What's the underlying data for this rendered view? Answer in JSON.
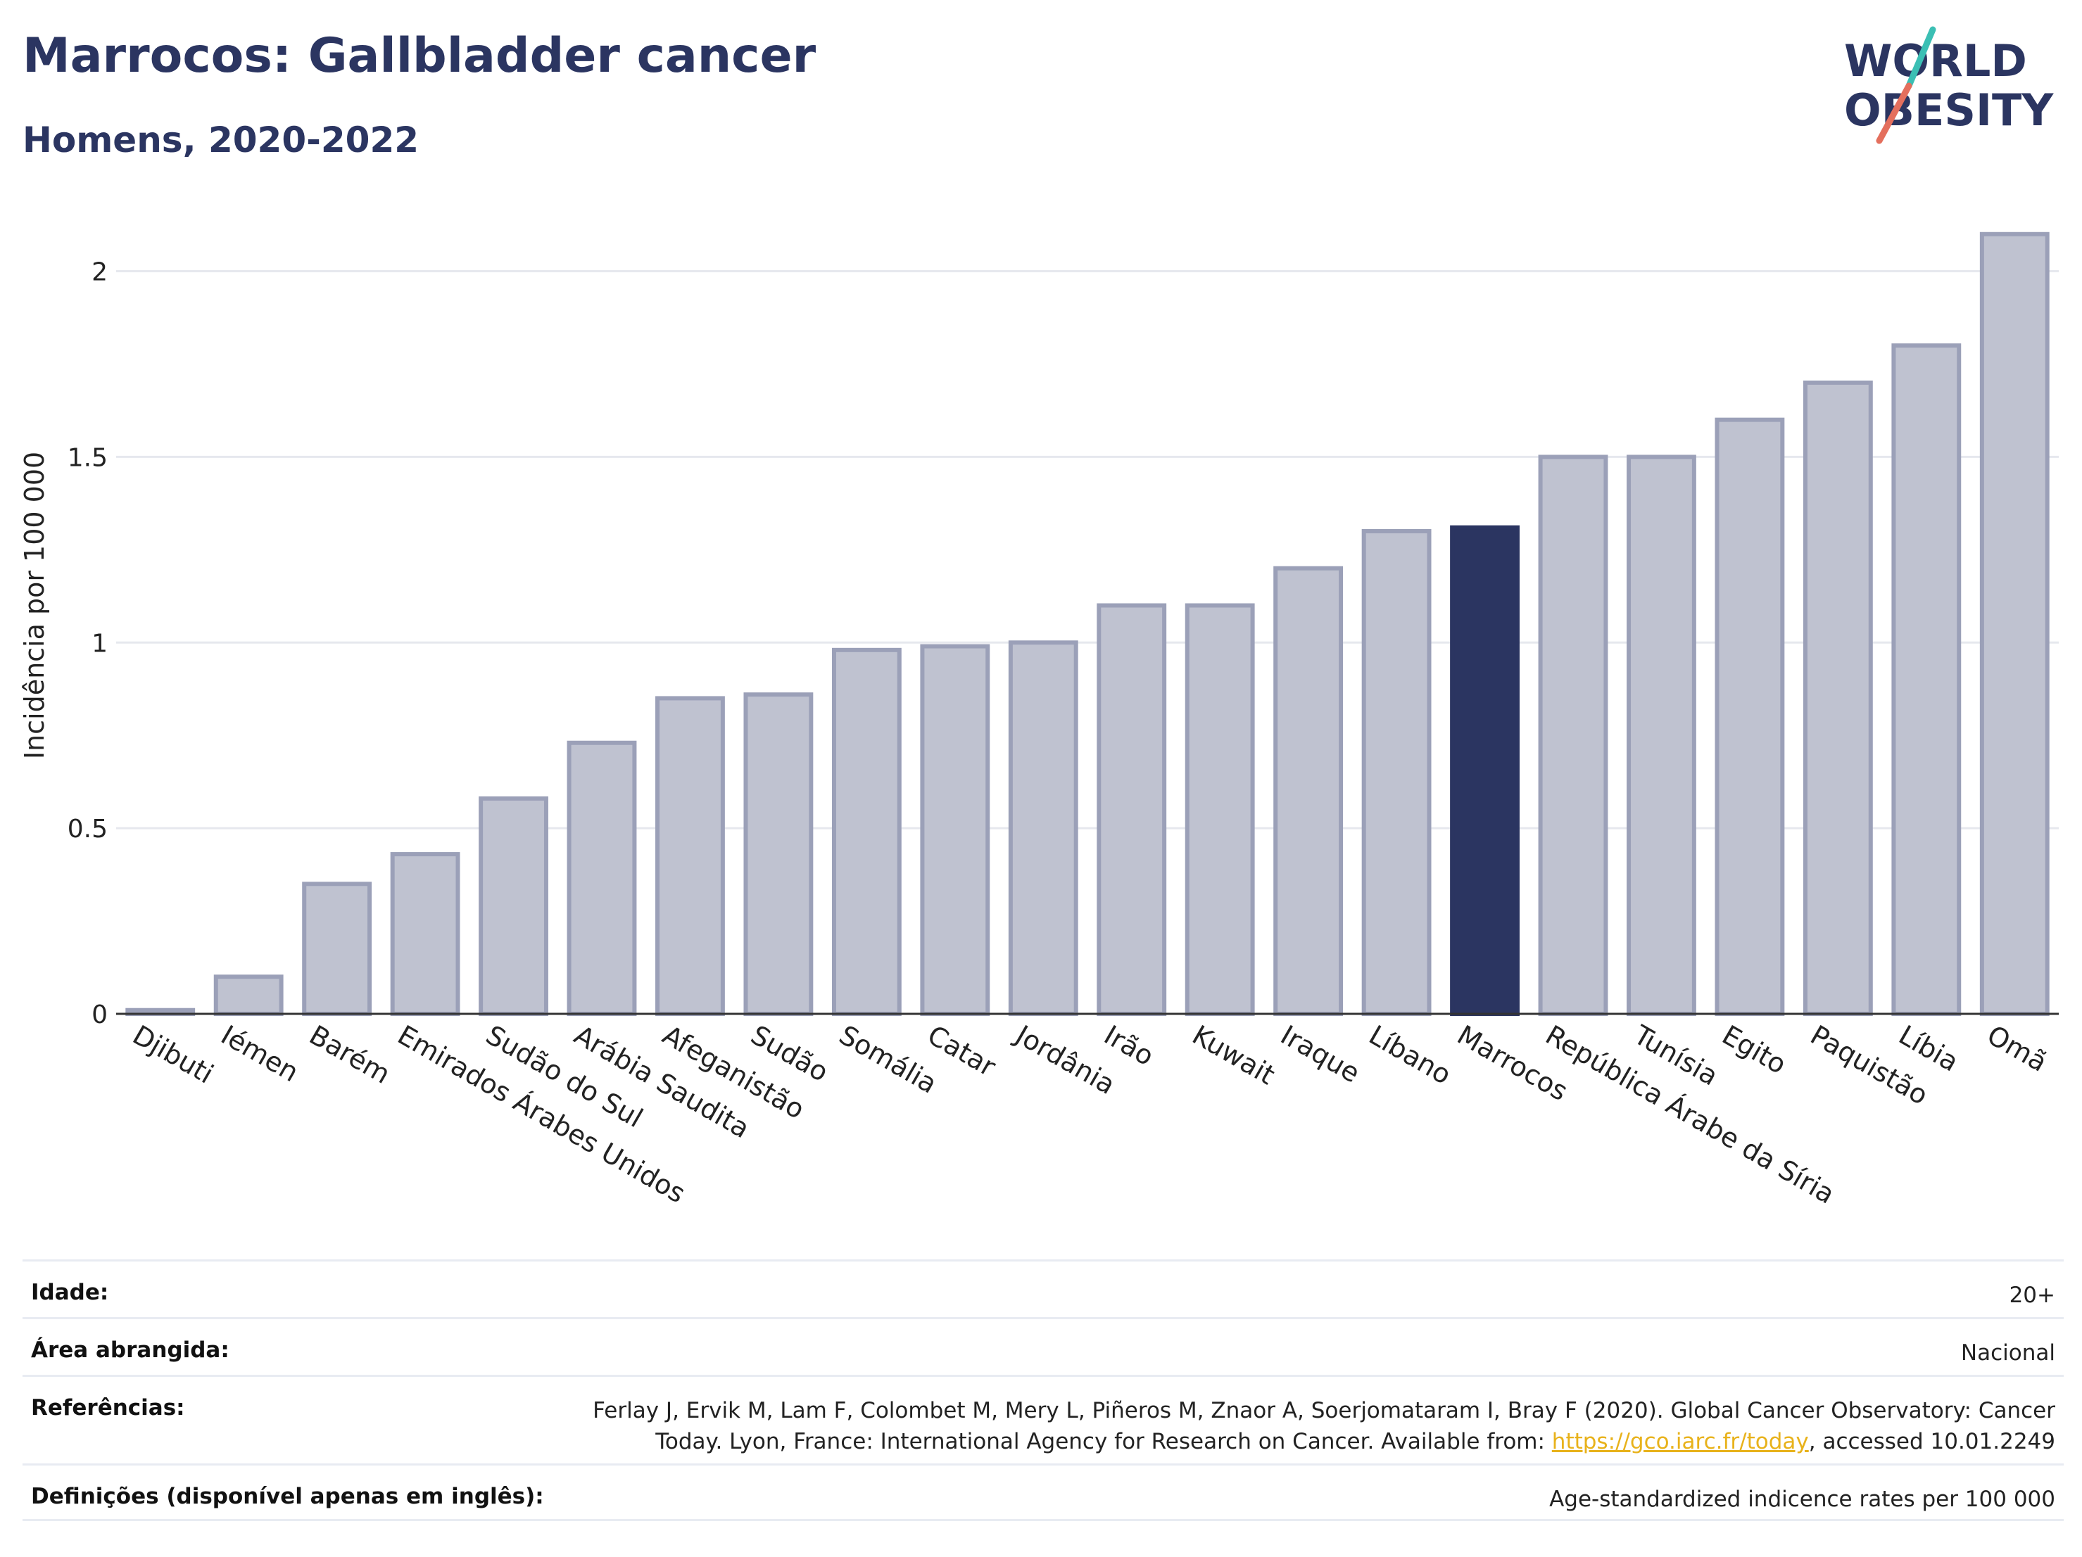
{
  "header": {
    "title": "Marrocos: Gallbladder cancer",
    "subtitle": "Homens, 2020-2022",
    "logo_line1": "WORLD",
    "logo_line2": "OBESITY"
  },
  "colors": {
    "bar": "#bfc2d0",
    "bar_stroke": "#9ba0b8",
    "highlight": "#2b3561",
    "grid": "#e6e8ee",
    "axis": "#333333",
    "logo_text": "#2b3561",
    "logo_teal": "#3bbfb4",
    "logo_red": "#e46f5d"
  },
  "chart_data": {
    "type": "bar",
    "ylabel": "Incidência por 100 000",
    "ylim": [
      0,
      2.2
    ],
    "yticks": [
      0,
      0.5,
      1,
      1.5,
      2
    ],
    "ytick_labels": [
      "0",
      "0.5",
      "1",
      "1.5",
      "2"
    ],
    "grid": true,
    "highlight_category": "Marrocos",
    "categories": [
      "Djibuti",
      "Iémen",
      "Barém",
      "Emirados Árabes Unidos",
      "Sudão do Sul",
      "Arábia Saudita",
      "Afeganistão",
      "Sudão",
      "Somália",
      "Catar",
      "Jordânia",
      "Irão",
      "Kuwait",
      "Iraque",
      "Líbano",
      "Marrocos",
      "República Árabe da Síria",
      "Tunísia",
      "Egito",
      "Paquistão",
      "Líbia",
      "Omã"
    ],
    "values": [
      0.01,
      0.1,
      0.35,
      0.43,
      0.58,
      0.73,
      0.85,
      0.86,
      0.98,
      0.99,
      1.0,
      1.1,
      1.1,
      1.2,
      1.3,
      1.31,
      1.5,
      1.5,
      1.6,
      1.7,
      1.8,
      2.1
    ]
  },
  "info": {
    "age_label": "Idade:",
    "age_value": "20+",
    "area_label": "Área abrangida:",
    "area_value": "Nacional",
    "ref_label": "Referências:",
    "ref_line1": "Ferlay J, Ervik M, Lam F, Colombet M, Mery L, Piñeros M, Znaor A, Soerjomataram I, Bray F (2020). Global Cancer Observatory: Cancer",
    "ref_line2_pre": "Today. Lyon, France: International Agency for Research on Cancer. Available from: ",
    "ref_link": "https://gco.iarc.fr/today",
    "ref_line2_post": ", accessed 10.01.2249",
    "def_label": "Definições (disponível apenas em inglês):",
    "def_value": "Age-standardized indicence rates per 100 000"
  }
}
